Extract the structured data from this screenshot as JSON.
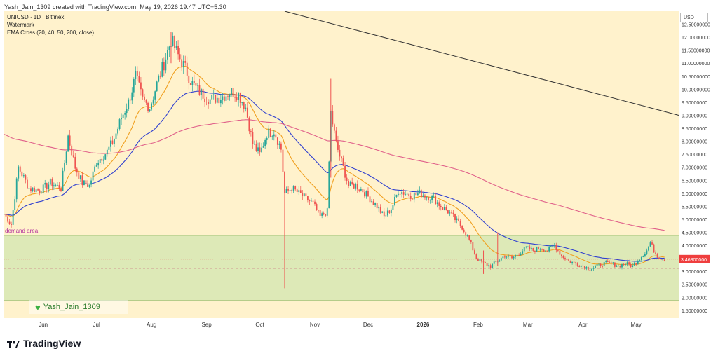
{
  "header": {
    "text": "Yash_Jain_1309 created with TradingView.com, May 19, 2026 19:47 UTC+5:30"
  },
  "legend": {
    "symbol": "UNIUSD · 1D · Bitfinex",
    "watermark_label": "Watermark",
    "indicator": "EMA Cross (20, 40, 50, 200, close)"
  },
  "annotations": {
    "demand_area": "demand area"
  },
  "watermark": {
    "text": "Yash_Jain_1309",
    "icon": "heart-icon"
  },
  "currency": "USD",
  "footer": {
    "brand": "TradingView"
  },
  "colors": {
    "background": "#fff2cc",
    "demand_zone": "#d9e8b5",
    "up_candle": "#26a69a",
    "down_candle": "#ef5350",
    "ema_20": "#f0a020",
    "ema_50": "#3040d0",
    "ema_200": "#e0608a",
    "trendline": "#333333",
    "price_label": "#ef3e3e"
  },
  "chart_data": {
    "type": "candlestick",
    "title": "UNIUSD · 1D · Bitfinex",
    "y_range": [
      1.2,
      13.0
    ],
    "y_ticks": [
      "12.50000000",
      "12.00000000",
      "11.50000000",
      "11.00000000",
      "10.50000000",
      "10.00000000",
      "9.50000000",
      "9.00000000",
      "8.50000000",
      "8.00000000",
      "7.50000000",
      "7.00000000",
      "6.50000000",
      "6.00000000",
      "5.50000000",
      "5.00000000",
      "4.50000000",
      "4.00000000",
      "3.50000000",
      "3.00000000",
      "2.50000000",
      "2.00000000",
      "1.50000000"
    ],
    "y_tick_values": [
      12.5,
      12.0,
      11.5,
      11.0,
      10.5,
      10.0,
      9.5,
      9.0,
      8.5,
      8.0,
      7.5,
      7.0,
      6.5,
      6.0,
      5.5,
      5.0,
      4.5,
      4.0,
      3.5,
      3.0,
      2.5,
      2.0,
      1.5
    ],
    "x_labels": [
      {
        "label": "Jun",
        "day": 22
      },
      {
        "label": "Jul",
        "day": 52
      },
      {
        "label": "Aug",
        "day": 83
      },
      {
        "label": "Sep",
        "day": 114
      },
      {
        "label": "Oct",
        "day": 144
      },
      {
        "label": "Nov",
        "day": 175
      },
      {
        "label": "Dec",
        "day": 205
      },
      {
        "label": "2026",
        "day": 236
      },
      {
        "label": "Feb",
        "day": 267
      },
      {
        "label": "Mar",
        "day": 295
      },
      {
        "label": "Apr",
        "day": 326
      },
      {
        "label": "May",
        "day": 356
      }
    ],
    "x_range_days": [
      0,
      380
    ],
    "last_day": 372,
    "last_price": 3.468,
    "last_price_label": "3.46800000",
    "demand_zone": [
      1.88,
      4.38
    ],
    "dashed_level": 3.12,
    "trendline": {
      "from": [
        158,
        13.0
      ],
      "to": [
        380,
        9.0
      ]
    },
    "price_path": [
      [
        0,
        5.2
      ],
      [
        4,
        4.8
      ],
      [
        8,
        7.0
      ],
      [
        14,
        6.2
      ],
      [
        20,
        6.1
      ],
      [
        26,
        6.4
      ],
      [
        32,
        6.2
      ],
      [
        36,
        8.2
      ],
      [
        40,
        7.0
      ],
      [
        44,
        6.4
      ],
      [
        48,
        6.3
      ],
      [
        52,
        7.2
      ],
      [
        58,
        7.6
      ],
      [
        62,
        8.1
      ],
      [
        66,
        8.9
      ],
      [
        70,
        9.5
      ],
      [
        74,
        10.5
      ],
      [
        78,
        9.6
      ],
      [
        82,
        9.3
      ],
      [
        86,
        10.2
      ],
      [
        90,
        11.0
      ],
      [
        94,
        11.9
      ],
      [
        98,
        11.3
      ],
      [
        102,
        10.8
      ],
      [
        106,
        10.2
      ],
      [
        110,
        9.9
      ],
      [
        116,
        9.6
      ],
      [
        122,
        9.7
      ],
      [
        128,
        9.9
      ],
      [
        132,
        9.8
      ],
      [
        136,
        9.3
      ],
      [
        140,
        7.9
      ],
      [
        144,
        7.5
      ],
      [
        148,
        8.3
      ],
      [
        152,
        8.4
      ],
      [
        156,
        7.7
      ],
      [
        158,
        6.0
      ],
      [
        162,
        6.2
      ],
      [
        166,
        6.0
      ],
      [
        170,
        5.8
      ],
      [
        174,
        5.6
      ],
      [
        178,
        5.1
      ],
      [
        182,
        5.3
      ],
      [
        184,
        9.1
      ],
      [
        187,
        7.9
      ],
      [
        190,
        7.2
      ],
      [
        194,
        6.3
      ],
      [
        198,
        6.3
      ],
      [
        202,
        6.1
      ],
      [
        206,
        5.8
      ],
      [
        210,
        5.5
      ],
      [
        214,
        5.1
      ],
      [
        218,
        5.4
      ],
      [
        222,
        6.1
      ],
      [
        226,
        6.0
      ],
      [
        230,
        5.9
      ],
      [
        234,
        6.0
      ],
      [
        238,
        5.9
      ],
      [
        242,
        5.8
      ],
      [
        246,
        5.5
      ],
      [
        250,
        5.3
      ],
      [
        254,
        5.0
      ],
      [
        258,
        4.7
      ],
      [
        262,
        4.2
      ],
      [
        266,
        3.5
      ],
      [
        270,
        3.3
      ],
      [
        274,
        3.2
      ],
      [
        278,
        3.4
      ],
      [
        282,
        3.6
      ],
      [
        286,
        3.5
      ],
      [
        290,
        3.7
      ],
      [
        294,
        3.9
      ],
      [
        298,
        3.8
      ],
      [
        302,
        3.9
      ],
      [
        306,
        3.8
      ],
      [
        310,
        4.0
      ],
      [
        314,
        3.6
      ],
      [
        318,
        3.4
      ],
      [
        322,
        3.3
      ],
      [
        326,
        3.2
      ],
      [
        330,
        3.1
      ],
      [
        334,
        3.2
      ],
      [
        338,
        3.3
      ],
      [
        342,
        3.3
      ],
      [
        346,
        3.2
      ],
      [
        350,
        3.3
      ],
      [
        354,
        3.2
      ],
      [
        358,
        3.5
      ],
      [
        362,
        3.8
      ],
      [
        364,
        4.1
      ],
      [
        366,
        3.8
      ],
      [
        368,
        3.6
      ],
      [
        370,
        3.5
      ],
      [
        372,
        3.468
      ]
    ],
    "wicks": [
      {
        "day": 158,
        "low": 2.35,
        "high": 6.4
      },
      {
        "day": 184,
        "low": 6.6,
        "high": 10.4
      },
      {
        "day": 94,
        "low": 11.0,
        "high": 12.2
      },
      {
        "day": 270,
        "low": 2.9,
        "high": 3.8
      },
      {
        "day": 278,
        "low": 3.2,
        "high": 4.5
      }
    ],
    "series": [
      {
        "name": "EMA 20",
        "color": "#f0a020"
      },
      {
        "name": "EMA 50",
        "color": "#3040d0"
      },
      {
        "name": "EMA 200",
        "color": "#e0608a",
        "seed": 8.3
      }
    ]
  }
}
